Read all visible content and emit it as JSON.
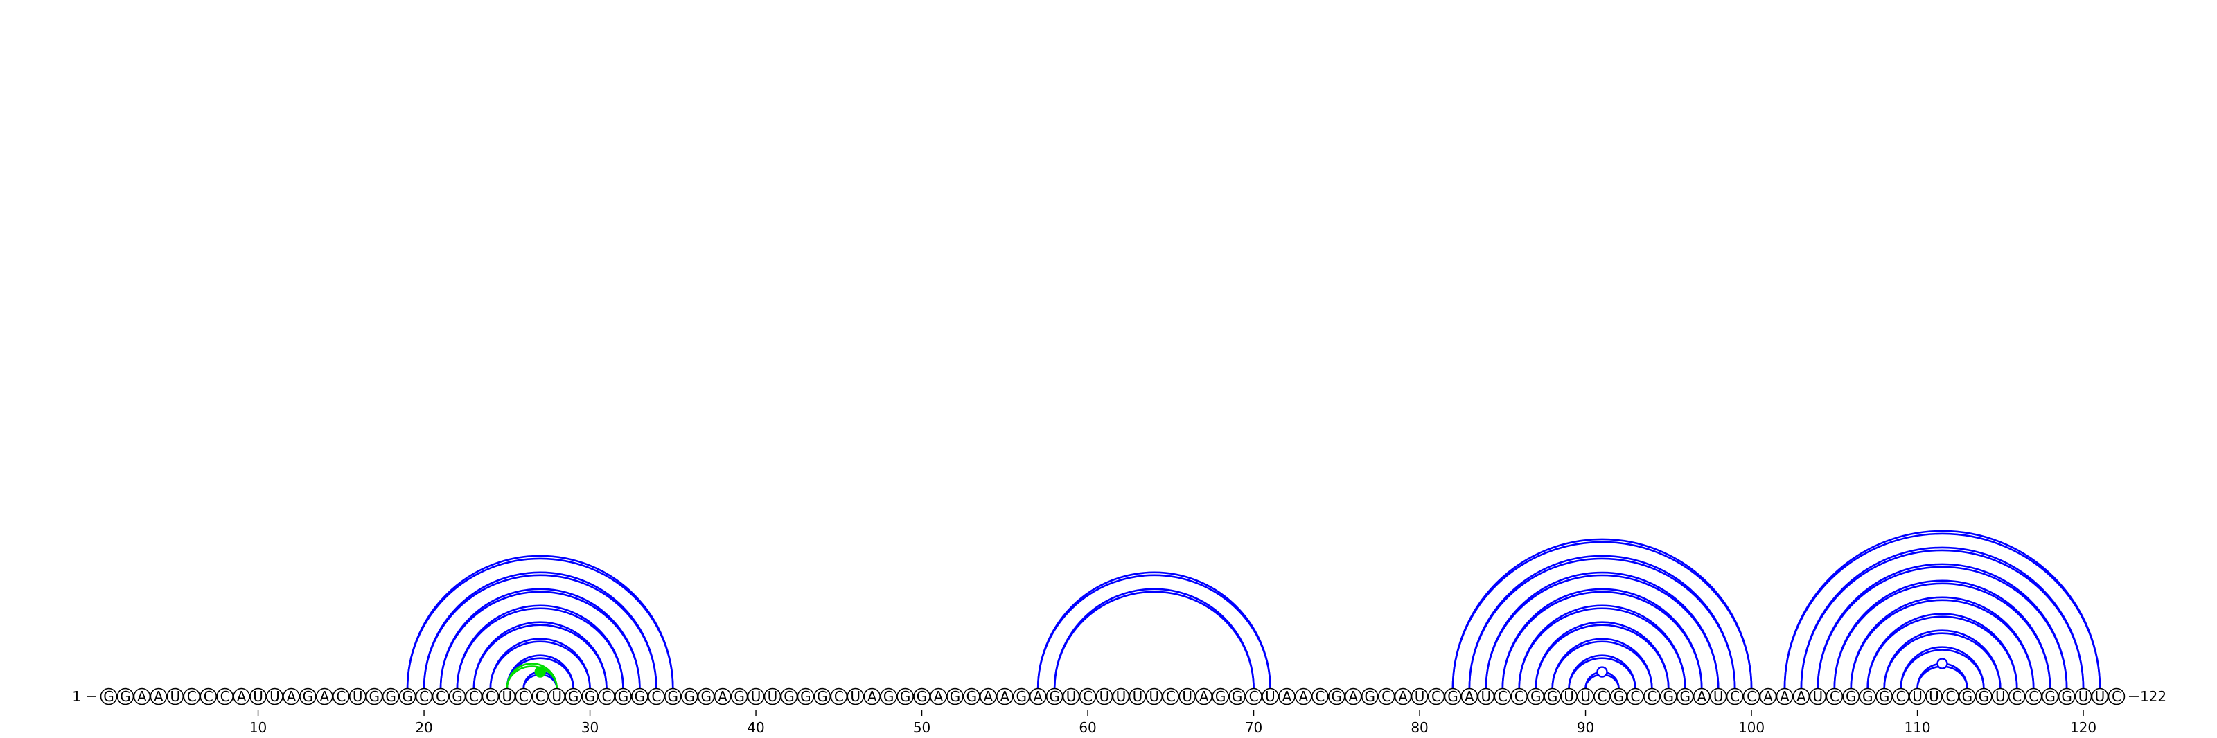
{
  "sequence": "GGAAUCCCAUUAGACUGGGCCGCCUCCUGGCGGCGGGAGUUGGGCUAGGGAGGAAGAGUCUUUUCUAGGCUAACGAGCAUCGAUCCGGUUCGCCGGAUCCAAAUCGGGCUUCGGUCCGGUUC",
  "start_label": "1",
  "end_label": "122",
  "ticks": [
    "10",
    "20",
    "30",
    "40",
    "50",
    "60",
    "70",
    "80",
    "90",
    "100",
    "110",
    "120"
  ],
  "colors": {
    "pair_arc": "#0000ff",
    "highlight_arc": "#00dd00",
    "background": "#ffffff"
  },
  "base_pairs": [
    [
      19,
      35
    ],
    [
      20,
      34
    ],
    [
      21,
      33
    ],
    [
      22,
      32
    ],
    [
      23,
      31
    ],
    [
      24,
      30
    ],
    [
      25,
      29
    ],
    [
      26,
      28
    ],
    [
      57,
      71
    ],
    [
      58,
      70
    ],
    [
      82,
      100
    ],
    [
      83,
      99
    ],
    [
      84,
      98
    ],
    [
      85,
      97
    ],
    [
      86,
      96
    ],
    [
      87,
      95
    ],
    [
      88,
      94
    ],
    [
      89,
      93
    ],
    [
      90,
      92
    ],
    [
      102,
      121
    ],
    [
      103,
      120
    ],
    [
      104,
      119
    ],
    [
      105,
      118
    ],
    [
      106,
      117
    ],
    [
      107,
      116
    ],
    [
      108,
      115
    ],
    [
      109,
      114
    ],
    [
      110,
      113
    ]
  ],
  "highlight_pairs": [
    [
      25,
      28
    ]
  ]
}
